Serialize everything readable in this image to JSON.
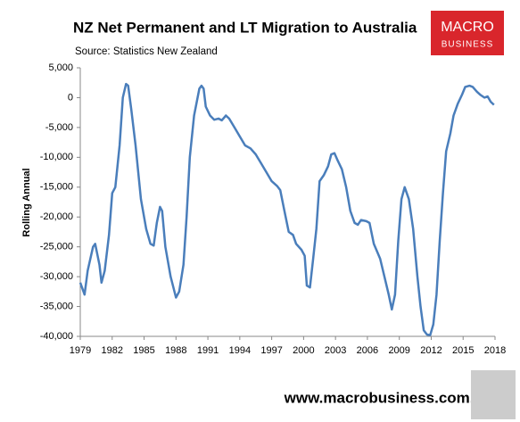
{
  "chart_data": {
    "type": "line",
    "title": "NZ Net Permanent and LT Migration to Australia",
    "subtitle": "Source: Statistics New Zealand",
    "y_label": "Rolling Annual",
    "color": "#4a7ebb",
    "grid": false,
    "xlim": [
      1979,
      2018
    ],
    "xticks": [
      1979,
      1982,
      1985,
      1988,
      1991,
      1994,
      1997,
      2000,
      2003,
      2006,
      2009,
      2012,
      2015,
      2018
    ],
    "ylim": [
      -40000,
      5000
    ],
    "yticks": [
      {
        "value": -40000,
        "label": "-40,000"
      },
      {
        "value": -35000,
        "label": "-35,000"
      },
      {
        "value": -30000,
        "label": "-30,000"
      },
      {
        "value": -25000,
        "label": "-25,000"
      },
      {
        "value": -20000,
        "label": "-20,000"
      },
      {
        "value": -15000,
        "label": "-15,000"
      },
      {
        "value": -10000,
        "label": "-10,000"
      },
      {
        "value": -5000,
        "label": "-5,000"
      },
      0,
      {
        "value": 5000,
        "label": "5,000"
      }
    ],
    "x": [
      1979.0,
      1979.4,
      1979.7,
      1980.2,
      1980.4,
      1980.8,
      1981.0,
      1981.3,
      1981.7,
      1982.0,
      1982.3,
      1982.7,
      1983.0,
      1983.3,
      1983.5,
      1983.8,
      1984.2,
      1984.7,
      1985.2,
      1985.6,
      1985.9,
      1986.2,
      1986.5,
      1986.7,
      1987.0,
      1987.5,
      1988.0,
      1988.3,
      1988.7,
      1989.0,
      1989.3,
      1989.7,
      1990.2,
      1990.4,
      1990.6,
      1990.8,
      1991.2,
      1991.6,
      1992.0,
      1992.3,
      1992.7,
      1993.0,
      1993.5,
      1994.0,
      1994.5,
      1995.0,
      1995.5,
      1996.0,
      1996.5,
      1997.0,
      1997.5,
      1997.8,
      1998.2,
      1998.6,
      1999.0,
      1999.3,
      1999.8,
      2000.1,
      2000.3,
      2000.6,
      2000.9,
      2001.2,
      2001.5,
      2001.9,
      2002.3,
      2002.6,
      2002.9,
      2003.2,
      2003.6,
      2004.0,
      2004.4,
      2004.8,
      2005.1,
      2005.4,
      2005.9,
      2006.2,
      2006.6,
      2007.2,
      2007.6,
      2008.0,
      2008.3,
      2008.6,
      2008.9,
      2009.2,
      2009.5,
      2009.9,
      2010.3,
      2010.7,
      2011.0,
      2011.3,
      2011.6,
      2011.9,
      2012.2,
      2012.5,
      2012.8,
      2013.1,
      2013.4,
      2013.8,
      2014.1,
      2014.5,
      2014.9,
      2015.2,
      2015.6,
      2015.9,
      2016.3,
      2016.6,
      2017.0,
      2017.3,
      2017.6,
      2017.9
    ],
    "values": [
      -31000,
      -33000,
      -29000,
      -25000,
      -24500,
      -28000,
      -31000,
      -29000,
      -23000,
      -16000,
      -15000,
      -8000,
      0,
      2300,
      2000,
      -2000,
      -8000,
      -17000,
      -22000,
      -24500,
      -24800,
      -21000,
      -18300,
      -19000,
      -25000,
      -30000,
      -33500,
      -32500,
      -28000,
      -20000,
      -10000,
      -3000,
      1500,
      2000,
      1500,
      -1500,
      -3000,
      -3700,
      -3500,
      -3800,
      -3000,
      -3500,
      -5000,
      -6500,
      -8000,
      -8500,
      -9500,
      -11000,
      -12500,
      -14000,
      -14800,
      -15500,
      -19000,
      -22500,
      -23000,
      -24500,
      -25500,
      -26500,
      -31500,
      -31800,
      -27000,
      -22000,
      -14000,
      -13000,
      -11500,
      -9500,
      -9300,
      -10500,
      -12000,
      -15000,
      -19000,
      -21000,
      -21300,
      -20500,
      -20700,
      -21000,
      -24500,
      -27000,
      -30000,
      -33000,
      -35500,
      -33000,
      -24000,
      -17000,
      -15000,
      -17000,
      -22000,
      -30000,
      -35000,
      -39000,
      -39700,
      -39800,
      -38000,
      -33000,
      -24000,
      -16000,
      -9000,
      -6000,
      -3000,
      -1000,
      500,
      1800,
      2000,
      1800,
      1000,
      500,
      0,
      200,
      -700,
      -1200
    ]
  },
  "logo": [
    "MACRO",
    "BUSINESS"
  ],
  "footer": "www.macrobusiness.com.au"
}
